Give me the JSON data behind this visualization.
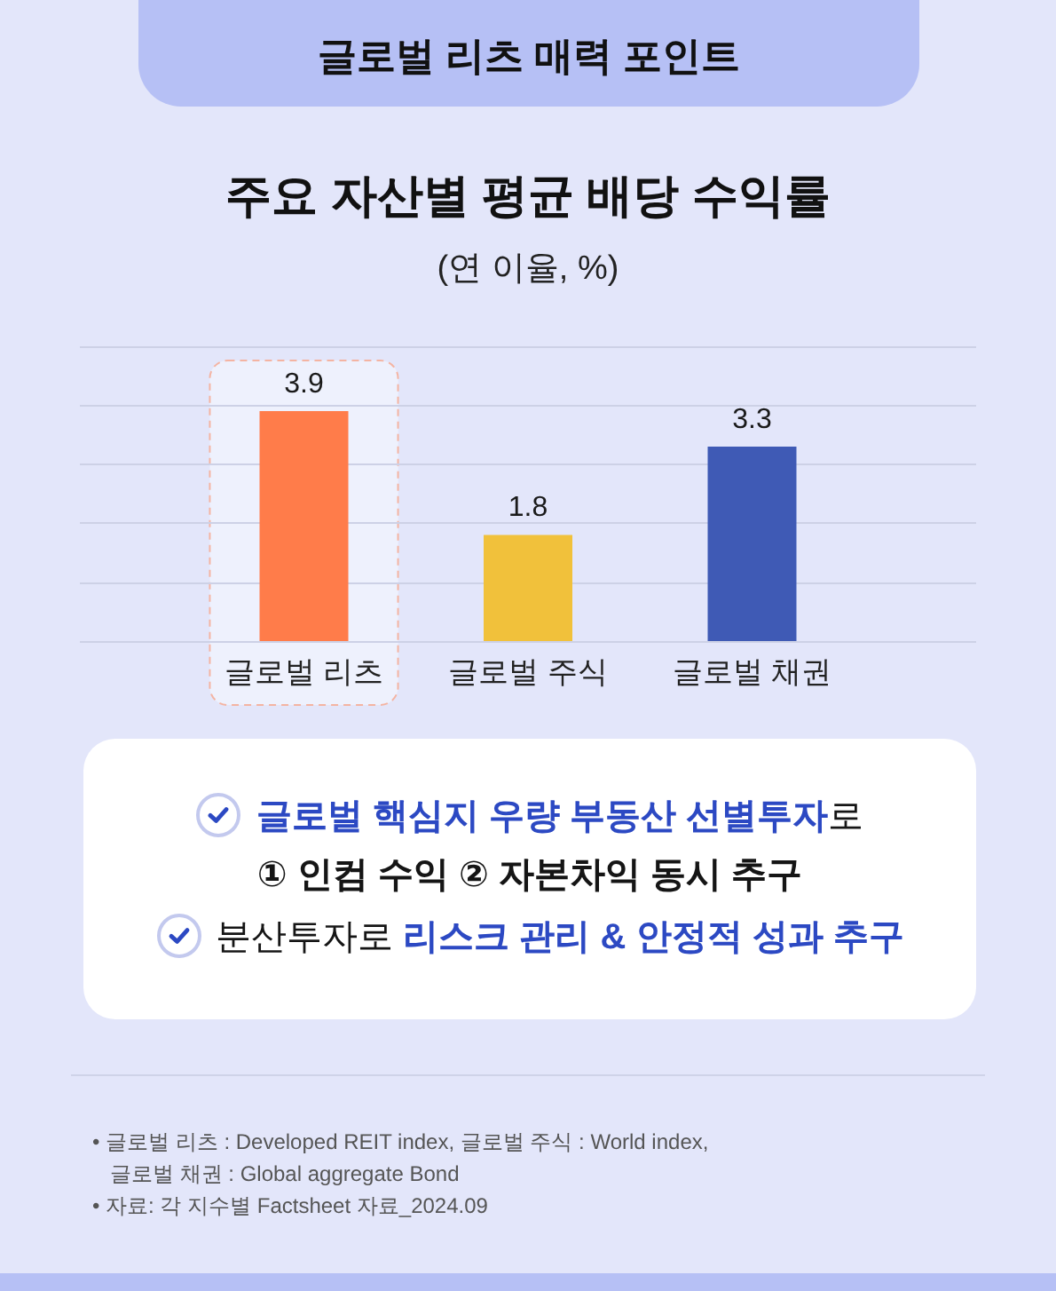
{
  "chart_data": {
    "type": "bar",
    "title": "주요 자산별 평균 배당 수익률",
    "subtitle": "(연 이율, %)",
    "categories": [
      "글로벌 리츠",
      "글로벌 주식",
      "글로벌 채권"
    ],
    "values": [
      3.9,
      1.8,
      3.3
    ],
    "colors": [
      "#ff7c4a",
      "#f1c13b",
      "#3f5ab5"
    ],
    "data_labels": true,
    "ylim": [
      0,
      5
    ],
    "yticks": [
      {
        "value": 0,
        "label": null
      },
      {
        "value": 1,
        "label": null
      },
      {
        "value": 2,
        "label": null
      },
      {
        "value": 3,
        "label": null
      },
      {
        "value": 4,
        "label": null
      },
      {
        "value": 5,
        "label": null
      }
    ],
    "tick_labels": "x",
    "grid": "y",
    "bands": [
      {
        "axis": "x",
        "from": "글로벌 리츠",
        "to": "글로벌 리츠",
        "color": "#eef1fd"
      }
    ],
    "annotations": [
      "글로벌 리츠 매력 포인트",
      "글로벌 핵심지 우량 부동산 선별투자",
      "로",
      "① 인컴 수익 ② 자본차익 동시 추구",
      "분산투자로",
      "리스크 관리 & 안정적 성과 추구",
      "• 글로벌 리츠 : Developed REIT index, 글로벌 주식 : World index, 글로벌 채권 : Global aggregate Bond",
      "• 자료: 각 지수별 Factsheet 자료_2024.09"
    ]
  }
}
